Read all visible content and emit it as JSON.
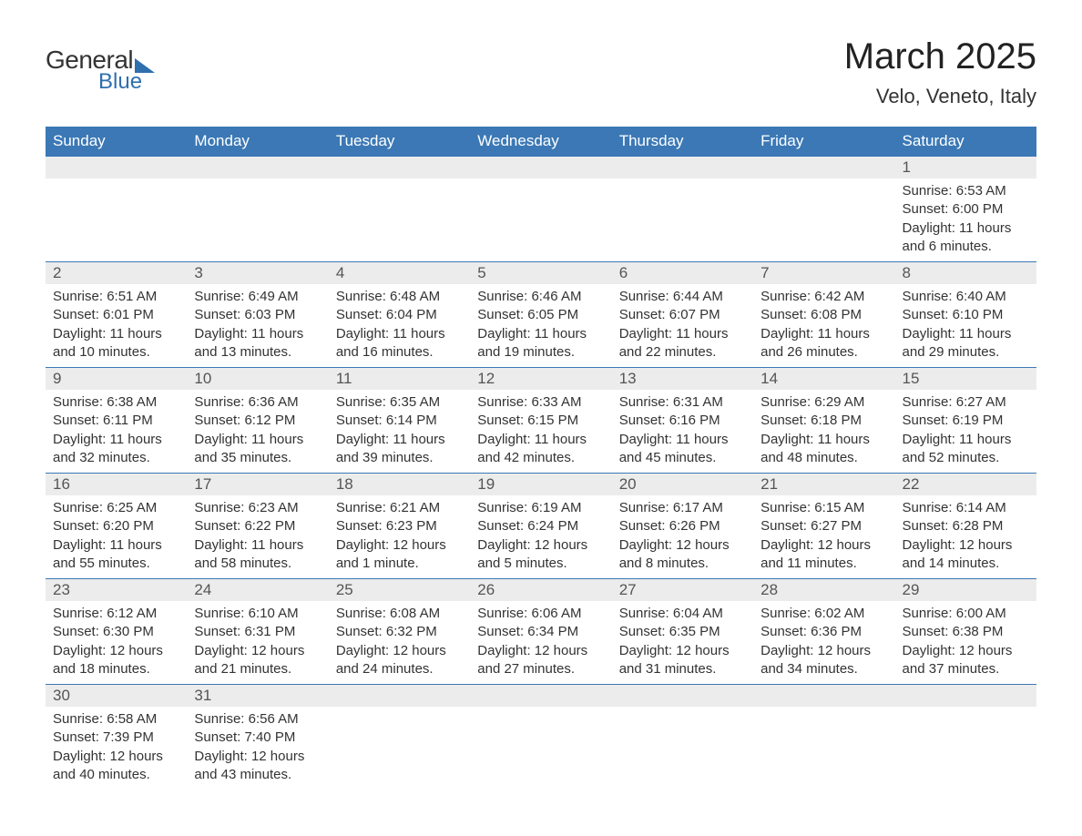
{
  "logo": {
    "text1": "General",
    "text2": "Blue"
  },
  "title": "March 2025",
  "location": "Velo, Veneto, Italy",
  "colors": {
    "header_bg": "#3b78b5",
    "header_text": "#ffffff",
    "daynum_bg": "#ececec",
    "border": "#3b78b5",
    "logo_accent": "#2f6fad",
    "text": "#333333"
  },
  "weekdays": [
    "Sunday",
    "Monday",
    "Tuesday",
    "Wednesday",
    "Thursday",
    "Friday",
    "Saturday"
  ],
  "weeks": [
    [
      null,
      null,
      null,
      null,
      null,
      null,
      {
        "n": "1",
        "sr": "Sunrise: 6:53 AM",
        "ss": "Sunset: 6:00 PM",
        "d1": "Daylight: 11 hours",
        "d2": "and 6 minutes."
      }
    ],
    [
      {
        "n": "2",
        "sr": "Sunrise: 6:51 AM",
        "ss": "Sunset: 6:01 PM",
        "d1": "Daylight: 11 hours",
        "d2": "and 10 minutes."
      },
      {
        "n": "3",
        "sr": "Sunrise: 6:49 AM",
        "ss": "Sunset: 6:03 PM",
        "d1": "Daylight: 11 hours",
        "d2": "and 13 minutes."
      },
      {
        "n": "4",
        "sr": "Sunrise: 6:48 AM",
        "ss": "Sunset: 6:04 PM",
        "d1": "Daylight: 11 hours",
        "d2": "and 16 minutes."
      },
      {
        "n": "5",
        "sr": "Sunrise: 6:46 AM",
        "ss": "Sunset: 6:05 PM",
        "d1": "Daylight: 11 hours",
        "d2": "and 19 minutes."
      },
      {
        "n": "6",
        "sr": "Sunrise: 6:44 AM",
        "ss": "Sunset: 6:07 PM",
        "d1": "Daylight: 11 hours",
        "d2": "and 22 minutes."
      },
      {
        "n": "7",
        "sr": "Sunrise: 6:42 AM",
        "ss": "Sunset: 6:08 PM",
        "d1": "Daylight: 11 hours",
        "d2": "and 26 minutes."
      },
      {
        "n": "8",
        "sr": "Sunrise: 6:40 AM",
        "ss": "Sunset: 6:10 PM",
        "d1": "Daylight: 11 hours",
        "d2": "and 29 minutes."
      }
    ],
    [
      {
        "n": "9",
        "sr": "Sunrise: 6:38 AM",
        "ss": "Sunset: 6:11 PM",
        "d1": "Daylight: 11 hours",
        "d2": "and 32 minutes."
      },
      {
        "n": "10",
        "sr": "Sunrise: 6:36 AM",
        "ss": "Sunset: 6:12 PM",
        "d1": "Daylight: 11 hours",
        "d2": "and 35 minutes."
      },
      {
        "n": "11",
        "sr": "Sunrise: 6:35 AM",
        "ss": "Sunset: 6:14 PM",
        "d1": "Daylight: 11 hours",
        "d2": "and 39 minutes."
      },
      {
        "n": "12",
        "sr": "Sunrise: 6:33 AM",
        "ss": "Sunset: 6:15 PM",
        "d1": "Daylight: 11 hours",
        "d2": "and 42 minutes."
      },
      {
        "n": "13",
        "sr": "Sunrise: 6:31 AM",
        "ss": "Sunset: 6:16 PM",
        "d1": "Daylight: 11 hours",
        "d2": "and 45 minutes."
      },
      {
        "n": "14",
        "sr": "Sunrise: 6:29 AM",
        "ss": "Sunset: 6:18 PM",
        "d1": "Daylight: 11 hours",
        "d2": "and 48 minutes."
      },
      {
        "n": "15",
        "sr": "Sunrise: 6:27 AM",
        "ss": "Sunset: 6:19 PM",
        "d1": "Daylight: 11 hours",
        "d2": "and 52 minutes."
      }
    ],
    [
      {
        "n": "16",
        "sr": "Sunrise: 6:25 AM",
        "ss": "Sunset: 6:20 PM",
        "d1": "Daylight: 11 hours",
        "d2": "and 55 minutes."
      },
      {
        "n": "17",
        "sr": "Sunrise: 6:23 AM",
        "ss": "Sunset: 6:22 PM",
        "d1": "Daylight: 11 hours",
        "d2": "and 58 minutes."
      },
      {
        "n": "18",
        "sr": "Sunrise: 6:21 AM",
        "ss": "Sunset: 6:23 PM",
        "d1": "Daylight: 12 hours",
        "d2": "and 1 minute."
      },
      {
        "n": "19",
        "sr": "Sunrise: 6:19 AM",
        "ss": "Sunset: 6:24 PM",
        "d1": "Daylight: 12 hours",
        "d2": "and 5 minutes."
      },
      {
        "n": "20",
        "sr": "Sunrise: 6:17 AM",
        "ss": "Sunset: 6:26 PM",
        "d1": "Daylight: 12 hours",
        "d2": "and 8 minutes."
      },
      {
        "n": "21",
        "sr": "Sunrise: 6:15 AM",
        "ss": "Sunset: 6:27 PM",
        "d1": "Daylight: 12 hours",
        "d2": "and 11 minutes."
      },
      {
        "n": "22",
        "sr": "Sunrise: 6:14 AM",
        "ss": "Sunset: 6:28 PM",
        "d1": "Daylight: 12 hours",
        "d2": "and 14 minutes."
      }
    ],
    [
      {
        "n": "23",
        "sr": "Sunrise: 6:12 AM",
        "ss": "Sunset: 6:30 PM",
        "d1": "Daylight: 12 hours",
        "d2": "and 18 minutes."
      },
      {
        "n": "24",
        "sr": "Sunrise: 6:10 AM",
        "ss": "Sunset: 6:31 PM",
        "d1": "Daylight: 12 hours",
        "d2": "and 21 minutes."
      },
      {
        "n": "25",
        "sr": "Sunrise: 6:08 AM",
        "ss": "Sunset: 6:32 PM",
        "d1": "Daylight: 12 hours",
        "d2": "and 24 minutes."
      },
      {
        "n": "26",
        "sr": "Sunrise: 6:06 AM",
        "ss": "Sunset: 6:34 PM",
        "d1": "Daylight: 12 hours",
        "d2": "and 27 minutes."
      },
      {
        "n": "27",
        "sr": "Sunrise: 6:04 AM",
        "ss": "Sunset: 6:35 PM",
        "d1": "Daylight: 12 hours",
        "d2": "and 31 minutes."
      },
      {
        "n": "28",
        "sr": "Sunrise: 6:02 AM",
        "ss": "Sunset: 6:36 PM",
        "d1": "Daylight: 12 hours",
        "d2": "and 34 minutes."
      },
      {
        "n": "29",
        "sr": "Sunrise: 6:00 AM",
        "ss": "Sunset: 6:38 PM",
        "d1": "Daylight: 12 hours",
        "d2": "and 37 minutes."
      }
    ],
    [
      {
        "n": "30",
        "sr": "Sunrise: 6:58 AM",
        "ss": "Sunset: 7:39 PM",
        "d1": "Daylight: 12 hours",
        "d2": "and 40 minutes."
      },
      {
        "n": "31",
        "sr": "Sunrise: 6:56 AM",
        "ss": "Sunset: 7:40 PM",
        "d1": "Daylight: 12 hours",
        "d2": "and 43 minutes."
      },
      null,
      null,
      null,
      null,
      null
    ]
  ]
}
